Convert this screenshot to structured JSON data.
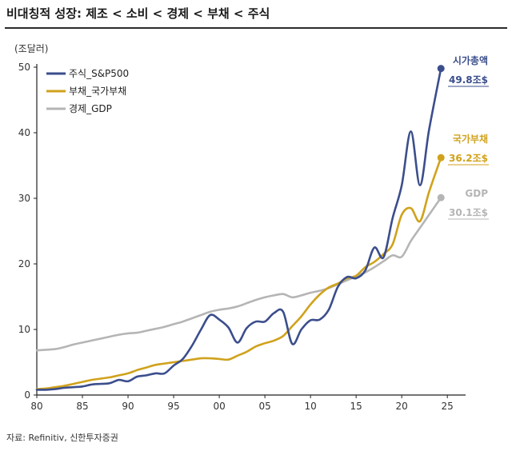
{
  "header": {
    "title": "비대칭적 성장: 제조 < 소비 < 경제 < 부채 < 주식",
    "unit": "(조달러)",
    "source": "자료: Refinitiv, 신한투자증권"
  },
  "chart_data": {
    "type": "line",
    "xlim": [
      1980,
      2027
    ],
    "ylim": [
      0,
      50
    ],
    "x_ticks": [
      {
        "value": 1980,
        "label": "80"
      },
      {
        "value": 1985,
        "label": "85"
      },
      {
        "value": 1990,
        "label": "90"
      },
      {
        "value": 1995,
        "label": "95"
      },
      {
        "value": 2000,
        "label": "00"
      },
      {
        "value": 2005,
        "label": "05"
      },
      {
        "value": 2010,
        "label": "10"
      },
      {
        "value": 2015,
        "label": "15"
      },
      {
        "value": 2020,
        "label": "20"
      },
      {
        "value": 2025,
        "label": "25"
      }
    ],
    "y_ticks": [
      0,
      10,
      20,
      30,
      40,
      50
    ],
    "legend_position": "top-left",
    "series": [
      {
        "name": "주식_S&P500",
        "color": "#3b4e8c",
        "end_label": {
          "name": "시가총액",
          "value": "49.8조$"
        },
        "points": [
          [
            1980,
            0.8
          ],
          [
            1981,
            0.8
          ],
          [
            1982,
            0.9
          ],
          [
            1983,
            1.1
          ],
          [
            1984,
            1.2
          ],
          [
            1985,
            1.3
          ],
          [
            1986,
            1.6
          ],
          [
            1987,
            1.7
          ],
          [
            1988,
            1.8
          ],
          [
            1989,
            2.3
          ],
          [
            1990,
            2.1
          ],
          [
            1991,
            2.8
          ],
          [
            1992,
            3.0
          ],
          [
            1993,
            3.3
          ],
          [
            1994,
            3.3
          ],
          [
            1995,
            4.5
          ],
          [
            1996,
            5.5
          ],
          [
            1997,
            7.5
          ],
          [
            1998,
            10.0
          ],
          [
            1999,
            12.2
          ],
          [
            2000,
            11.5
          ],
          [
            2001,
            10.3
          ],
          [
            2002,
            8.0
          ],
          [
            2003,
            10.2
          ],
          [
            2004,
            11.2
          ],
          [
            2005,
            11.2
          ],
          [
            2006,
            12.5
          ],
          [
            2007,
            12.7
          ],
          [
            2008,
            7.8
          ],
          [
            2009,
            10.0
          ],
          [
            2010,
            11.4
          ],
          [
            2011,
            11.5
          ],
          [
            2012,
            13.0
          ],
          [
            2013,
            16.5
          ],
          [
            2014,
            18.0
          ],
          [
            2015,
            17.8
          ],
          [
            2016,
            19.0
          ],
          [
            2017,
            22.5
          ],
          [
            2018,
            21.0
          ],
          [
            2019,
            27.0
          ],
          [
            2020,
            32.0
          ],
          [
            2021,
            40.2
          ],
          [
            2022,
            32.0
          ],
          [
            2023,
            40.5
          ],
          [
            2024.3,
            49.8
          ]
        ]
      },
      {
        "name": "부채_국가부채",
        "color": "#d0a21c",
        "end_label": {
          "name": "국가부채",
          "value": "36.2조$"
        },
        "points": [
          [
            1980,
            0.9
          ],
          [
            1981,
            1.0
          ],
          [
            1982,
            1.2
          ],
          [
            1983,
            1.4
          ],
          [
            1984,
            1.7
          ],
          [
            1985,
            2.0
          ],
          [
            1986,
            2.3
          ],
          [
            1987,
            2.5
          ],
          [
            1988,
            2.7
          ],
          [
            1989,
            3.0
          ],
          [
            1990,
            3.3
          ],
          [
            1991,
            3.8
          ],
          [
            1992,
            4.2
          ],
          [
            1993,
            4.6
          ],
          [
            1994,
            4.8
          ],
          [
            1995,
            5.0
          ],
          [
            1996,
            5.2
          ],
          [
            1997,
            5.4
          ],
          [
            1998,
            5.6
          ],
          [
            1999,
            5.6
          ],
          [
            2000,
            5.5
          ],
          [
            2001,
            5.4
          ],
          [
            2002,
            6.0
          ],
          [
            2003,
            6.6
          ],
          [
            2004,
            7.4
          ],
          [
            2005,
            7.9
          ],
          [
            2006,
            8.3
          ],
          [
            2007,
            9.0
          ],
          [
            2008,
            10.5
          ],
          [
            2009,
            12.0
          ],
          [
            2010,
            13.8
          ],
          [
            2011,
            15.3
          ],
          [
            2012,
            16.4
          ],
          [
            2013,
            17.0
          ],
          [
            2014,
            17.8
          ],
          [
            2015,
            18.2
          ],
          [
            2016,
            19.5
          ],
          [
            2017,
            20.3
          ],
          [
            2018,
            21.5
          ],
          [
            2019,
            23.0
          ],
          [
            2020,
            27.5
          ],
          [
            2021,
            28.5
          ],
          [
            2022,
            26.5
          ],
          [
            2023,
            31.0
          ],
          [
            2024.3,
            36.2
          ]
        ]
      },
      {
        "name": "경제_GDP",
        "color": "#b5b5b5",
        "end_label": {
          "name": "GDP",
          "value": "30.1조$"
        },
        "points": [
          [
            1980,
            6.8
          ],
          [
            1981,
            6.9
          ],
          [
            1982,
            7.0
          ],
          [
            1983,
            7.3
          ],
          [
            1984,
            7.7
          ],
          [
            1985,
            8.0
          ],
          [
            1986,
            8.3
          ],
          [
            1987,
            8.6
          ],
          [
            1988,
            8.9
          ],
          [
            1989,
            9.2
          ],
          [
            1990,
            9.4
          ],
          [
            1991,
            9.5
          ],
          [
            1992,
            9.8
          ],
          [
            1993,
            10.1
          ],
          [
            1994,
            10.4
          ],
          [
            1995,
            10.8
          ],
          [
            1996,
            11.2
          ],
          [
            1997,
            11.7
          ],
          [
            1998,
            12.2
          ],
          [
            1999,
            12.7
          ],
          [
            2000,
            13.0
          ],
          [
            2001,
            13.2
          ],
          [
            2002,
            13.5
          ],
          [
            2003,
            14.0
          ],
          [
            2004,
            14.5
          ],
          [
            2005,
            14.9
          ],
          [
            2006,
            15.2
          ],
          [
            2007,
            15.4
          ],
          [
            2008,
            14.9
          ],
          [
            2009,
            15.2
          ],
          [
            2010,
            15.6
          ],
          [
            2011,
            15.9
          ],
          [
            2012,
            16.3
          ],
          [
            2013,
            16.9
          ],
          [
            2014,
            17.5
          ],
          [
            2015,
            18.1
          ],
          [
            2016,
            18.7
          ],
          [
            2017,
            19.5
          ],
          [
            2018,
            20.4
          ],
          [
            2019,
            21.3
          ],
          [
            2020,
            21.1
          ],
          [
            2021,
            23.5
          ],
          [
            2022,
            25.5
          ],
          [
            2023,
            27.5
          ],
          [
            2024.3,
            30.1
          ]
        ]
      }
    ]
  }
}
